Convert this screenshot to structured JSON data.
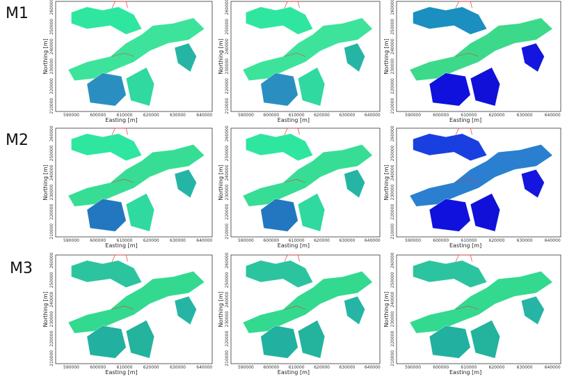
{
  "rows": [
    {
      "label": "M1"
    },
    {
      "label": "M2"
    },
    {
      "label": "M3"
    }
  ],
  "axes": {
    "x_label": "Easting [m]",
    "y_label": "Northing [m]",
    "x_ticks": [
      "590000",
      "600000",
      "610000",
      "620000",
      "630000",
      "640000"
    ],
    "y_ticks": [
      "210000",
      "220000",
      "230000",
      "240000",
      "250000",
      "260000"
    ]
  }
}
